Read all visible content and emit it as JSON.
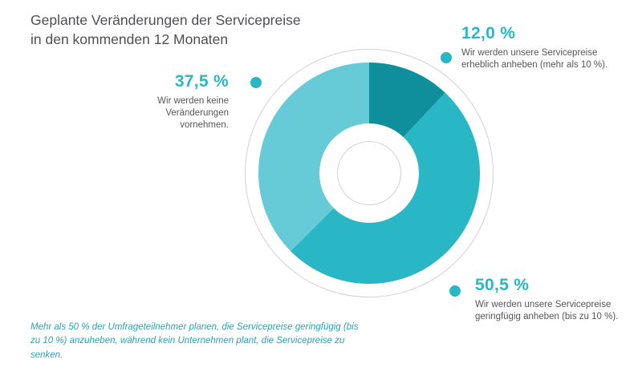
{
  "header": {
    "title_line1": "Geplante Veränderungen der Servicepreise",
    "title_line2": "in den kommenden 12 Monaten"
  },
  "colors": {
    "accent": "#29b6c5",
    "ring_outline": "#d2d2d2",
    "title_text": "#4d4f53",
    "body_text": "#53565a",
    "footer_text": "#2aa3b3"
  },
  "chart_data": {
    "type": "pie",
    "subtype": "donut",
    "title": "Geplante Veränderungen der Servicepreise in den kommenden 12 Monaten",
    "start_angle_deg": 0,
    "direction": "clockwise",
    "slices": [
      {
        "name": "erheblich-anheben",
        "value_pct": 12.0,
        "value_label": "12,0 %",
        "description": "Wir werden unsere Servicepreise erheblich anheben (mehr als 10 %).",
        "color": "#0f8e9c"
      },
      {
        "name": "geringfuegig-anheben",
        "value_pct": 50.5,
        "value_label": "50,5 %",
        "description": "Wir werden unsere Servicepreise geringfügig anheben (bis zu 10 %).",
        "color": "#29b6c5"
      },
      {
        "name": "keine-veraenderungen",
        "value_pct": 37.5,
        "value_label": "37,5 %",
        "description": "Wir werden keine Veränderungen vornehmen.",
        "color": "#67cbd7"
      }
    ]
  },
  "footer": {
    "note": "Mehr als 50 % der Umfrageteilnehmer planen, die Servicepreise geringfügig (bis zu 10 %) anzuheben, während kein Unternehmen plant, die Servicepreise zu senken."
  }
}
